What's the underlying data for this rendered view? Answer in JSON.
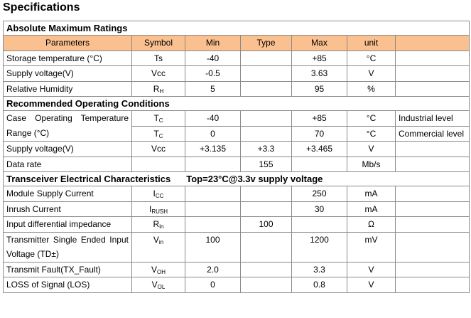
{
  "title": "Specifications",
  "sections": [
    {
      "heading": "Absolute Maximum Ratings",
      "columns": [
        "Parameters",
        "Symbol",
        "Min",
        "Type",
        "Max",
        "unit"
      ],
      "rows": [
        {
          "parameter": "Storage temperature (°C)",
          "symbol": "Ts",
          "min": "-40",
          "max": "+85",
          "unit": "°C"
        },
        {
          "parameter": "Supply voltage(V)",
          "symbol": "Vcc",
          "min": "-0.5",
          "max": "3.63",
          "unit": "V"
        },
        {
          "parameter": "Relative Humidity",
          "symbol": {
            "base": "R",
            "sub": "H"
          },
          "min": "5",
          "max": "95",
          "unit": "%"
        }
      ]
    },
    {
      "heading": "Recommended Operating Conditions",
      "rows": [
        {
          "parameter": "Case Operating Temperature Range (°C)",
          "conditions": [
            {
              "symbol": {
                "base": "T",
                "sub": "C"
              },
              "min": "-40",
              "max": "+85",
              "unit": "°C",
              "note": "Industrial level"
            },
            {
              "symbol": {
                "base": "T",
                "sub": "C"
              },
              "min": "0",
              "max": "70",
              "unit": "°C",
              "note": "Commercial level"
            }
          ]
        },
        {
          "parameter": "Supply voltage(V)",
          "symbol": "Vcc",
          "min": "+3.135",
          "type": "+3.3",
          "max": "+3.465",
          "unit": "V"
        },
        {
          "parameter": "Data rate",
          "type": "155",
          "unit": "Mb/s"
        }
      ]
    },
    {
      "heading": "Transceiver Electrical Characteristics",
      "condition": "Top=23°C@3.3v supply voltage",
      "rows": [
        {
          "parameter": "Module Supply Current",
          "symbol": {
            "base": "I",
            "sub": "CC"
          },
          "max": "250",
          "unit": "mA"
        },
        {
          "parameter": "Inrush Current",
          "symbol": {
            "base": "I",
            "sub": "RUSH"
          },
          "max": "30",
          "unit": "mA"
        },
        {
          "parameter": "Input differential impedance",
          "symbol": {
            "base": "R",
            "sub": "in"
          },
          "type": "100",
          "unit": "Ω"
        },
        {
          "parameter": "Transmitter Single Ended Input Voltage (TD±)",
          "symbol": {
            "base": "V",
            "sub": "in"
          },
          "min": "100",
          "max": "1200",
          "unit": "mV"
        },
        {
          "parameter": "Transmit Fault(TX_Fault)",
          "symbol": {
            "base": "V",
            "sub": "OH"
          },
          "min": "2.0",
          "max": "3.3",
          "unit": "V"
        },
        {
          "parameter": "LOSS of Signal (LOS)",
          "symbol": {
            "base": "V",
            "sub": "OL"
          },
          "min": "0",
          "max": "0.8",
          "unit": "V"
        }
      ]
    }
  ]
}
